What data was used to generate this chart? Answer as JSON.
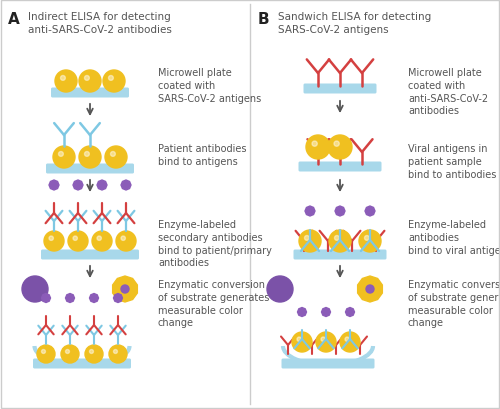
{
  "bg_color": "#ffffff",
  "border_color": "#cccccc",
  "yellow": "#F0C020",
  "blue_ab": "#7EC8E3",
  "red_ab": "#D44040",
  "purple_blob": "#7B52A8",
  "purple_star": "#8B5CB8",
  "plate_color": "#A8D8EA",
  "text_color": "#555555",
  "label_A": "A",
  "label_B": "B",
  "title_A": "Indirect ELISA for detecting\nanti-SARS-CoV-2 antibodies",
  "title_B": "Sandwich ELISA for detecting\nSARS-CoV-2 antigens",
  "step1_A": "Microwell plate\ncoated with\nSARS-CoV-2 antigens",
  "step2_A": "Patient antibodies\nbind to antigens",
  "step3_A": "Enzyme-labeled\nsecondary antibodies\nbind to patient/primary\nantibodies",
  "step4_A": "Enzymatic conversion\nof substrate generates\nmeasurable color\nchange",
  "step1_B": "Microwell plate\ncoated with\nanti-SARS-CoV-2\nantibodies",
  "step2_B": "Viral antigens in\npatient sample\nbind to antibodies",
  "step3_B": "Enzyme-labeled\nantibodies\nbind to viral antigens",
  "step4_B": "Enzymatic conversion\nof substrate generates\nmeasurable color\nchange"
}
